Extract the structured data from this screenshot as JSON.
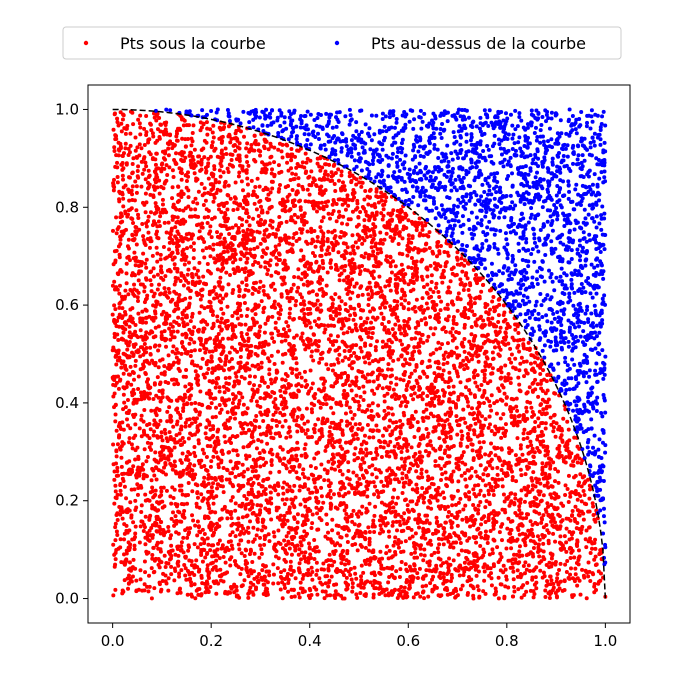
{
  "chart_data": {
    "type": "scatter",
    "title": "",
    "xlabel": "",
    "ylabel": "",
    "xlim": [
      -0.05,
      1.05
    ],
    "ylim": [
      -0.05,
      1.05
    ],
    "xticks": [
      0.0,
      0.2,
      0.4,
      0.6,
      0.8,
      1.0
    ],
    "xtick_labels": [
      "0.0",
      "0.2",
      "0.4",
      "0.6",
      "0.8",
      "1.0"
    ],
    "yticks": [
      0.0,
      0.2,
      0.4,
      0.6,
      0.8,
      1.0
    ],
    "ytick_labels": [
      "0.0",
      "0.2",
      "0.4",
      "0.6",
      "0.8",
      "1.0"
    ],
    "grid": false,
    "legend": {
      "placement": "top-center-outside",
      "entries": [
        {
          "label": "Pts sous la courbe",
          "color": "#ff0000"
        },
        {
          "label": "Pts au-dessus de la courbe",
          "color": "#0000ff"
        }
      ]
    },
    "curve": {
      "equation": "y = sqrt(1 - x^2)",
      "x_range": [
        0,
        1
      ],
      "style": "dashed",
      "color": "#000000"
    },
    "series": [
      {
        "name": "Pts sous la courbe",
        "color": "#ff0000",
        "region": "x^2 + y^2 <= 1",
        "x_range": [
          0,
          1
        ],
        "y_range": [
          0,
          1
        ],
        "approx_count": 7850
      },
      {
        "name": "Pts au-dessus de la courbe",
        "color": "#0000ff",
        "region": "x^2 + y^2 > 1",
        "x_range": [
          0,
          1
        ],
        "y_range": [
          0,
          1
        ],
        "approx_count": 2150
      }
    ],
    "total_points": 10000
  }
}
